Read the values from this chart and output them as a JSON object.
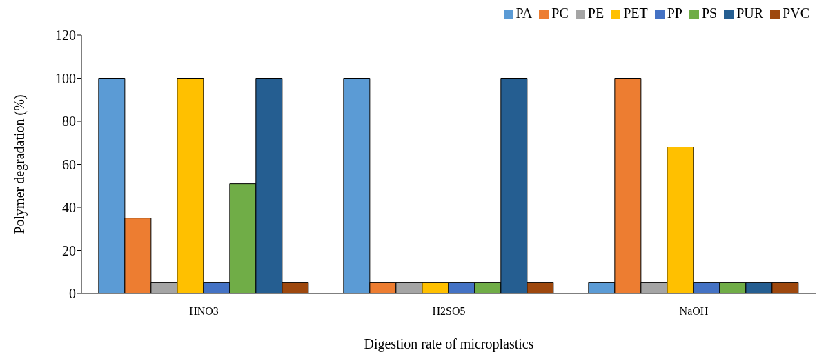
{
  "chart_data": {
    "type": "bar",
    "xlabel": "Digestion rate of microplastics",
    "ylabel": "Polymer degradation (%)",
    "categories": [
      "HNO3",
      "H2SO5",
      "NaOH"
    ],
    "series": [
      {
        "name": "PA",
        "color": "#5b9bd5",
        "values": [
          100,
          100,
          5
        ]
      },
      {
        "name": "PC",
        "color": "#ed7d31",
        "values": [
          35,
          5,
          100
        ]
      },
      {
        "name": "PE",
        "color": "#a5a5a5",
        "values": [
          5,
          5,
          5
        ]
      },
      {
        "name": "PET",
        "color": "#ffc000",
        "values": [
          100,
          5,
          68
        ]
      },
      {
        "name": "PP",
        "color": "#4472c4",
        "values": [
          5,
          5,
          5
        ]
      },
      {
        "name": "PS",
        "color": "#70ad47",
        "values": [
          51,
          5,
          5
        ]
      },
      {
        "name": "PUR",
        "color": "#255e91",
        "values": [
          100,
          100,
          5
        ]
      },
      {
        "name": "PVC",
        "color": "#9e480e",
        "values": [
          5,
          5,
          5
        ]
      }
    ],
    "ylim": [
      0,
      120
    ],
    "yticks": [
      0,
      20,
      40,
      60,
      80,
      100,
      120
    ],
    "grid": false,
    "legend": "top right"
  }
}
